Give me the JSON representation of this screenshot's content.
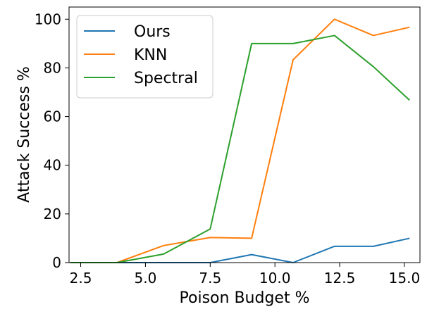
{
  "chart_data": {
    "type": "line",
    "title": "",
    "xlabel": "Poison Budget %",
    "ylabel": "Attack Success %",
    "xlim": [
      2.05,
      15.6
    ],
    "ylim": [
      0,
      105
    ],
    "xticks": [
      "2.5",
      "5.0",
      "7.5",
      "10.0",
      "12.5",
      "15.0"
    ],
    "yticks": [
      "0",
      "20",
      "40",
      "60",
      "80",
      "100"
    ],
    "grid": false,
    "legend": "top-left",
    "x": [
      2.1,
      3.9,
      5.7,
      7.5,
      9.1,
      10.7,
      12.3,
      13.8,
      15.2
    ],
    "series": [
      {
        "name": "Ours",
        "color": "#1f77b4",
        "values": [
          0,
          0,
          0,
          0,
          3.3,
          0,
          6.7,
          6.7,
          10
        ]
      },
      {
        "name": "KNN",
        "color": "#ff7f0e",
        "values": [
          0,
          0,
          7,
          10.3,
          10,
          83.3,
          100,
          93.3,
          96.7
        ]
      },
      {
        "name": "Spectral",
        "color": "#2ca02c",
        "values": [
          0,
          0,
          3.5,
          13.8,
          90,
          90,
          93.3,
          80.5,
          66.7
        ]
      }
    ]
  }
}
